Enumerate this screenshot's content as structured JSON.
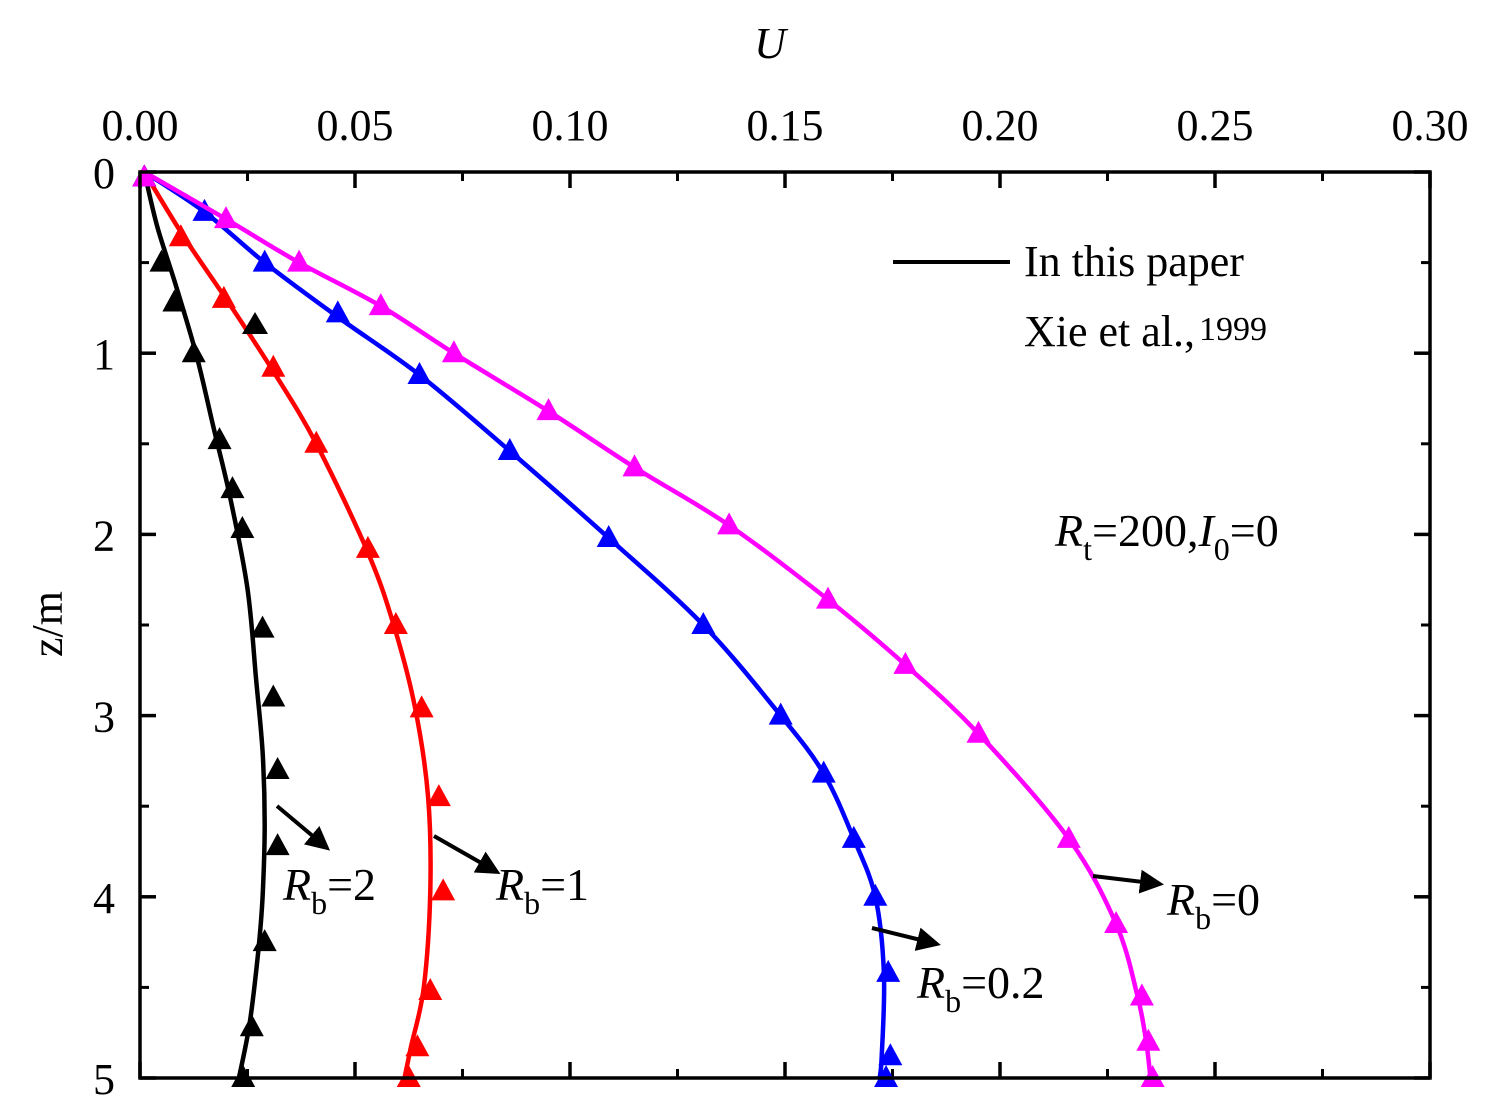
{
  "chart_data": {
    "type": "line",
    "xlabel": "U",
    "ylabel": "z/m",
    "xlim": [
      0,
      0.3
    ],
    "ylim": [
      0,
      5
    ],
    "x_axis_position": "top",
    "y_inverted": true,
    "xticks": [
      "0.00",
      "0.05",
      "0.10",
      "0.15",
      "0.20",
      "0.25",
      "0.30"
    ],
    "yticks": [
      "0",
      "1",
      "2",
      "3",
      "4",
      "5"
    ],
    "legend": {
      "placement": "top-right",
      "line_label": "In this paper",
      "marker_label_main": "Xie et al.,",
      "marker_label_year": "1999"
    },
    "parameter_label": {
      "R": "R",
      "t": "t",
      "mid": "=200,",
      "I": "I",
      "zero_sub": "0",
      "end": "=0"
    },
    "series": [
      {
        "label_main": "R",
        "label_sub": "b",
        "label_value": "=2",
        "color": "#000000",
        "line": [
          [
            0.001,
            0
          ],
          [
            0.004,
            0.3
          ],
          [
            0.008,
            0.6
          ],
          [
            0.013,
            1.0
          ],
          [
            0.017,
            1.4
          ],
          [
            0.021,
            1.8
          ],
          [
            0.025,
            2.3
          ],
          [
            0.027,
            2.8
          ],
          [
            0.0285,
            3.2
          ],
          [
            0.029,
            3.6
          ],
          [
            0.0285,
            4.0
          ],
          [
            0.0275,
            4.3
          ],
          [
            0.0255,
            4.7
          ],
          [
            0.023,
            5.0
          ]
        ],
        "markers": [
          [
            0.001,
            0.03
          ],
          [
            0.005,
            0.5
          ],
          [
            0.008,
            0.72
          ],
          [
            0.0125,
            1.0
          ],
          [
            0.0185,
            1.48
          ],
          [
            0.0215,
            1.75
          ],
          [
            0.0238,
            1.97
          ],
          [
            0.0285,
            2.52
          ],
          [
            0.031,
            2.9
          ],
          [
            0.032,
            3.3
          ],
          [
            0.032,
            3.72
          ],
          [
            0.029,
            4.25
          ],
          [
            0.026,
            4.72
          ],
          [
            0.024,
            5.0
          ]
        ]
      },
      {
        "label_main": "R",
        "label_sub": "b",
        "label_value": "=1",
        "color": "#ff0000",
        "line": [
          [
            0.001,
            0
          ],
          [
            0.01,
            0.35
          ],
          [
            0.02,
            0.7
          ],
          [
            0.031,
            1.1
          ],
          [
            0.041,
            1.5
          ],
          [
            0.053,
            2.1
          ],
          [
            0.059,
            2.5
          ],
          [
            0.064,
            2.96
          ],
          [
            0.067,
            3.45
          ],
          [
            0.0675,
            3.97
          ],
          [
            0.066,
            4.5
          ],
          [
            0.063,
            4.83
          ],
          [
            0.0615,
            5.0
          ]
        ],
        "markers": [
          [
            0.001,
            0.03
          ],
          [
            0.0095,
            0.36
          ],
          [
            0.0195,
            0.7
          ],
          [
            0.031,
            1.08
          ],
          [
            0.041,
            1.5
          ],
          [
            0.053,
            2.08
          ],
          [
            0.0595,
            2.5
          ],
          [
            0.0655,
            2.96
          ],
          [
            0.0695,
            3.45
          ],
          [
            0.0705,
            3.97
          ],
          [
            0.0675,
            4.52
          ],
          [
            0.0645,
            4.83
          ],
          [
            0.0625,
            5.0
          ]
        ]
      },
      {
        "label_main": "R",
        "label_sub": "b",
        "label_value": "=0.2",
        "color": "#0000ff",
        "line": [
          [
            0.001,
            0
          ],
          [
            0.015,
            0.22
          ],
          [
            0.029,
            0.5
          ],
          [
            0.046,
            0.8
          ],
          [
            0.065,
            1.12
          ],
          [
            0.086,
            1.54
          ],
          [
            0.109,
            2.02
          ],
          [
            0.131,
            2.5
          ],
          [
            0.149,
            3.0
          ],
          [
            0.159,
            3.32
          ],
          [
            0.166,
            3.68
          ],
          [
            0.171,
            4.0
          ],
          [
            0.173,
            4.42
          ],
          [
            0.1725,
            4.88
          ],
          [
            0.172,
            5.0
          ]
        ],
        "markers": [
          [
            0.001,
            0.03
          ],
          [
            0.015,
            0.22
          ],
          [
            0.029,
            0.5
          ],
          [
            0.046,
            0.78
          ],
          [
            0.065,
            1.12
          ],
          [
            0.086,
            1.54
          ],
          [
            0.109,
            2.02
          ],
          [
            0.131,
            2.5
          ],
          [
            0.149,
            3.0
          ],
          [
            0.159,
            3.32
          ],
          [
            0.166,
            3.68
          ],
          [
            0.171,
            4.0
          ],
          [
            0.174,
            4.42
          ],
          [
            0.1745,
            4.88
          ],
          [
            0.1735,
            5.0
          ]
        ]
      },
      {
        "label_main": "R",
        "label_sub": "b",
        "label_value": "=0",
        "color": "#ff00ff",
        "line": [
          [
            0.001,
            0
          ],
          [
            0.02,
            0.26
          ],
          [
            0.037,
            0.5
          ],
          [
            0.056,
            0.74
          ],
          [
            0.073,
            1.0
          ],
          [
            0.095,
            1.32
          ],
          [
            0.115,
            1.63
          ],
          [
            0.137,
            1.95
          ],
          [
            0.16,
            2.36
          ],
          [
            0.178,
            2.72
          ],
          [
            0.195,
            3.1
          ],
          [
            0.216,
            3.68
          ],
          [
            0.227,
            4.15
          ],
          [
            0.232,
            4.55
          ],
          [
            0.234,
            4.8
          ],
          [
            0.235,
            5.0
          ]
        ],
        "markers": [
          [
            0.001,
            0.03
          ],
          [
            0.02,
            0.26
          ],
          [
            0.037,
            0.5
          ],
          [
            0.056,
            0.74
          ],
          [
            0.073,
            1.0
          ],
          [
            0.095,
            1.32
          ],
          [
            0.115,
            1.63
          ],
          [
            0.137,
            1.95
          ],
          [
            0.16,
            2.36
          ],
          [
            0.178,
            2.72
          ],
          [
            0.195,
            3.1
          ],
          [
            0.216,
            3.68
          ],
          [
            0.227,
            4.15
          ],
          [
            0.233,
            4.55
          ],
          [
            0.2345,
            4.8
          ],
          [
            0.2355,
            5.0
          ]
        ]
      }
    ]
  }
}
